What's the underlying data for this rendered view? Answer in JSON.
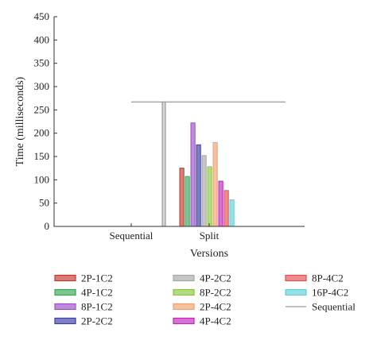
{
  "chart_data": {
    "type": "bar",
    "xlabel": "Versions",
    "ylabel": "Time (milliseconds)",
    "ylim": [
      0,
      450
    ],
    "yticks": [
      0,
      50,
      100,
      150,
      200,
      250,
      300,
      350,
      400,
      450
    ],
    "categories": [
      "Sequential",
      "Split"
    ],
    "grid": false,
    "legend_position": "bottom",
    "series": [
      {
        "name": "2P-1C2",
        "color": "#c0392b",
        "values": [
          null,
          125
        ]
      },
      {
        "name": "4P-1C2",
        "color": "#3aa655",
        "values": [
          null,
          107
        ]
      },
      {
        "name": "8P-1C2",
        "color": "#9b4fc4",
        "values": [
          null,
          222
        ]
      },
      {
        "name": "2P-2C2",
        "color": "#3c3c9e",
        "values": [
          null,
          175
        ]
      },
      {
        "name": "4P-2C2",
        "color": "#a6a6a6",
        "values": [
          null,
          152
        ]
      },
      {
        "name": "8P-2C2",
        "color": "#8cc63f",
        "values": [
          null,
          128
        ]
      },
      {
        "name": "2P-4C2",
        "color": "#f0a070",
        "values": [
          null,
          180
        ]
      },
      {
        "name": "4P-4C2",
        "color": "#c026b8",
        "values": [
          null,
          97
        ]
      },
      {
        "name": "8P-4C2",
        "color": "#e05050",
        "values": [
          null,
          77
        ]
      },
      {
        "name": "16P-4C2",
        "color": "#5fd0d8",
        "values": [
          null,
          57
        ]
      },
      {
        "name": "Sequential",
        "color": "#9a9a9a",
        "type": "line",
        "values": [
          267,
          null
        ]
      }
    ]
  }
}
